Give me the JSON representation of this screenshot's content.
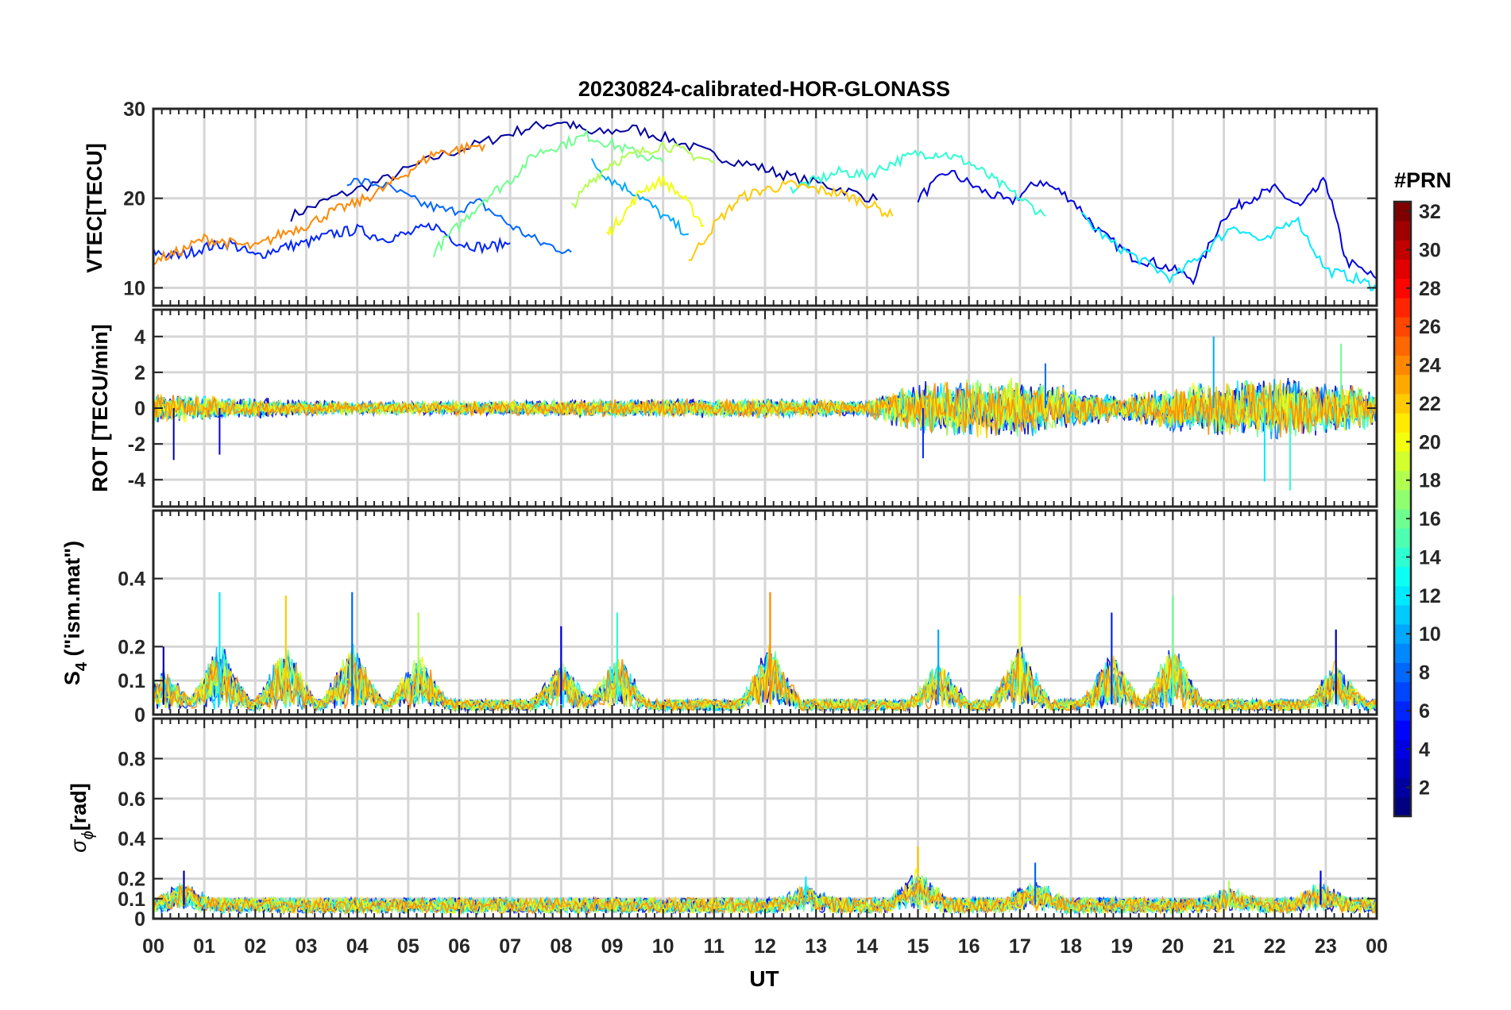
{
  "chart_data": {
    "type": "line",
    "title": "20230824-calibrated-HOR-GLONASS",
    "x_label": "UT",
    "x_ticks": [
      "00",
      "01",
      "02",
      "03",
      "04",
      "05",
      "06",
      "07",
      "08",
      "09",
      "10",
      "11",
      "12",
      "13",
      "14",
      "15",
      "16",
      "17",
      "18",
      "19",
      "20",
      "21",
      "22",
      "23",
      "00"
    ],
    "xlim": [
      0,
      24
    ],
    "grid": true,
    "panels": [
      {
        "id": "vtec",
        "ylabel": "VTEC[TECU]",
        "ylim": [
          8,
          30
        ],
        "yticks": [
          {
            "v": 10,
            "label": "10"
          },
          {
            "v": 20,
            "label": "20"
          },
          {
            "v": 30,
            "label": "30"
          }
        ],
        "series": [
          {
            "prn": 2,
            "x": [
              2.7,
              3.5,
              4.5,
              5.5,
              6.5,
              7.3,
              8.0,
              8.6,
              9.4,
              10.2,
              11.0,
              11.8,
              12.5,
              13.4,
              14.2
            ],
            "y": [
              18,
              20,
              22,
              24.5,
              26.3,
              27.8,
              28.6,
              27.2,
              27.8,
              26.5,
              24.8,
              23.6,
              22.4,
              21.2,
              19.8
            ]
          },
          {
            "prn": 4,
            "x": [
              15.0,
              15.6,
              16.2,
              16.8,
              17.4,
              18.0,
              18.6,
              19.2,
              19.8,
              20.4,
              21.0,
              21.5,
              22.0,
              22.5,
              23.0,
              23.4,
              24.0
            ],
            "y": [
              20,
              23,
              21,
              19.5,
              22,
              20,
              16,
              13.5,
              12.5,
              11,
              18,
              20,
              21,
              19,
              22,
              13,
              11
            ]
          },
          {
            "prn": 6,
            "x": [
              0,
              0.5,
              1.0,
              1.5,
              2.0,
              2.5,
              3.0,
              3.5,
              4.0,
              4.5,
              5.0,
              5.5,
              6.0,
              6.5,
              7.0
            ],
            "y": [
              14,
              13.5,
              14.5,
              15,
              13.5,
              14.5,
              15,
              16,
              16.5,
              15.5,
              16,
              17,
              15,
              14.5,
              15
            ]
          },
          {
            "prn": 8,
            "x": [
              3.8,
              4.5,
              5.2,
              5.8,
              6.4,
              7.0,
              7.6,
              8.2
            ],
            "y": [
              22,
              21.5,
              19.5,
              18.5,
              19.5,
              17,
              15,
              14
            ]
          },
          {
            "prn": 10,
            "x": [
              8.6,
              9.0,
              9.5,
              10.0,
              10.5
            ],
            "y": [
              24,
              22,
              20.5,
              18,
              16
            ]
          },
          {
            "prn": 12,
            "x": [
              18.2,
              18.8,
              19.4,
              20.0,
              20.6,
              21.2,
              21.8,
              22.4,
              23.0,
              23.6,
              24.0
            ],
            "y": [
              18,
              15,
              13,
              11,
              14,
              17,
              15,
              18,
              12,
              11,
              10
            ]
          },
          {
            "prn": 14,
            "x": [
              12.5,
              13.0,
              13.5,
              14.0,
              14.5,
              15.0,
              15.5,
              16.0,
              16.5,
              17.0,
              17.5
            ],
            "y": [
              21,
              22,
              23,
              22.5,
              24,
              25,
              25,
              24,
              22,
              20,
              18
            ]
          },
          {
            "prn": 16,
            "x": [
              5.5,
              6.0,
              6.5,
              7.0,
              7.5,
              8.0,
              8.5,
              9.0,
              9.5,
              10.0
            ],
            "y": [
              14,
              17,
              20,
              22,
              25,
              26,
              27,
              26,
              25,
              24
            ]
          },
          {
            "prn": 18,
            "x": [
              8.2,
              8.6,
              9.0,
              9.5,
              10.0,
              10.5,
              11.0
            ],
            "y": [
              19,
              22,
              24,
              25,
              26,
              25,
              24
            ]
          },
          {
            "prn": 20,
            "x": [
              8.9,
              9.2,
              9.6,
              10.0,
              10.4,
              10.8
            ],
            "y": [
              16,
              18,
              21,
              22,
              20,
              17
            ]
          },
          {
            "prn": 22,
            "x": [
              10.5,
              11.0,
              11.5,
              12.0,
              12.5,
              13.0,
              13.5,
              14.0,
              14.5
            ],
            "y": [
              13,
              17,
              20,
              21,
              21.5,
              21,
              20.5,
              19.5,
              18
            ]
          },
          {
            "prn": 24,
            "x": [
              0,
              0.5,
              1.0,
              1.5,
              2.0,
              2.5,
              3.0,
              3.5,
              4.0,
              4.5,
              5.0,
              5.5,
              6.0,
              6.5
            ],
            "y": [
              13,
              14,
              15.5,
              15,
              14.5,
              16,
              17,
              18.5,
              19.5,
              21,
              23,
              25,
              25.5,
              26
            ]
          }
        ]
      },
      {
        "id": "rot",
        "ylabel": "ROT [TECU/min]",
        "ylim": [
          -5.5,
          5.5
        ],
        "yticks": [
          {
            "v": -4,
            "label": "-4"
          },
          {
            "v": -2,
            "label": "-2"
          },
          {
            "v": 0,
            "label": "0"
          },
          {
            "v": 2,
            "label": "2"
          },
          {
            "v": 4,
            "label": "4"
          }
        ],
        "envelope": [
          {
            "x": 0,
            "a": 0.9
          },
          {
            "x": 2,
            "a": 0.6
          },
          {
            "x": 4,
            "a": 0.4
          },
          {
            "x": 8,
            "a": 0.5
          },
          {
            "x": 12,
            "a": 0.6
          },
          {
            "x": 14,
            "a": 0.5
          },
          {
            "x": 15,
            "a": 1.6
          },
          {
            "x": 17,
            "a": 1.8
          },
          {
            "x": 19,
            "a": 0.7
          },
          {
            "x": 20,
            "a": 1.4
          },
          {
            "x": 22,
            "a": 1.9
          },
          {
            "x": 24,
            "a": 1.2
          }
        ],
        "spikes": [
          {
            "x": 0.4,
            "y": -2.9
          },
          {
            "x": 1.3,
            "y": -2.6
          },
          {
            "x": 15.1,
            "y": -2.8
          },
          {
            "x": 17.5,
            "y": 2.5
          },
          {
            "x": 20.8,
            "y": 4.0
          },
          {
            "x": 21.8,
            "y": -4.1
          },
          {
            "x": 22.3,
            "y": -4.6
          },
          {
            "x": 23.3,
            "y": 3.6
          }
        ]
      },
      {
        "id": "s4",
        "ylabel": "S",
        "ylabel_sub": "4",
        "ylabel_suffix": "  (\"ism.mat\")",
        "ylim": [
          0,
          0.6
        ],
        "yticks": [
          {
            "v": 0,
            "label": "0"
          },
          {
            "v": 0.1,
            "label": "0.1"
          },
          {
            "v": 0.2,
            "label": "0.2"
          },
          {
            "v": 0.4,
            "label": "0.4"
          }
        ],
        "baseline": 0.03,
        "spikes": [
          {
            "x": 0.2,
            "y": 0.2
          },
          {
            "x": 1.3,
            "y": 0.36
          },
          {
            "x": 2.6,
            "y": 0.35
          },
          {
            "x": 3.9,
            "y": 0.36
          },
          {
            "x": 5.2,
            "y": 0.3
          },
          {
            "x": 8.0,
            "y": 0.26
          },
          {
            "x": 9.1,
            "y": 0.3
          },
          {
            "x": 12.1,
            "y": 0.36
          },
          {
            "x": 15.4,
            "y": 0.25
          },
          {
            "x": 17.0,
            "y": 0.35
          },
          {
            "x": 18.8,
            "y": 0.3
          },
          {
            "x": 20.0,
            "y": 0.35
          },
          {
            "x": 23.2,
            "y": 0.25
          }
        ]
      },
      {
        "id": "sigphi",
        "ylabel": "σ",
        "ylabel_sub": "ϕ",
        "ylabel_suffix": "[rad]",
        "ylim": [
          0,
          1
        ],
        "yticks": [
          {
            "v": 0,
            "label": "0"
          },
          {
            "v": 0.1,
            "label": "0.1"
          },
          {
            "v": 0.2,
            "label": "0.2"
          },
          {
            "v": 0.4,
            "label": "0.4"
          },
          {
            "v": 0.6,
            "label": "0.6"
          },
          {
            "v": 0.8,
            "label": "0.8"
          }
        ],
        "baseline": 0.07,
        "spikes": [
          {
            "x": 0.6,
            "y": 0.24
          },
          {
            "x": 12.8,
            "y": 0.21
          },
          {
            "x": 15.0,
            "y": 0.36
          },
          {
            "x": 17.3,
            "y": 0.28
          },
          {
            "x": 21.1,
            "y": 0.19
          },
          {
            "x": 22.9,
            "y": 0.24
          }
        ]
      }
    ],
    "colorbar": {
      "label": "#PRN",
      "range": [
        1,
        32
      ],
      "ticks": [
        2,
        4,
        6,
        8,
        10,
        12,
        14,
        16,
        18,
        20,
        22,
        24,
        26,
        28,
        30,
        32
      ],
      "colormap": "jet"
    }
  }
}
